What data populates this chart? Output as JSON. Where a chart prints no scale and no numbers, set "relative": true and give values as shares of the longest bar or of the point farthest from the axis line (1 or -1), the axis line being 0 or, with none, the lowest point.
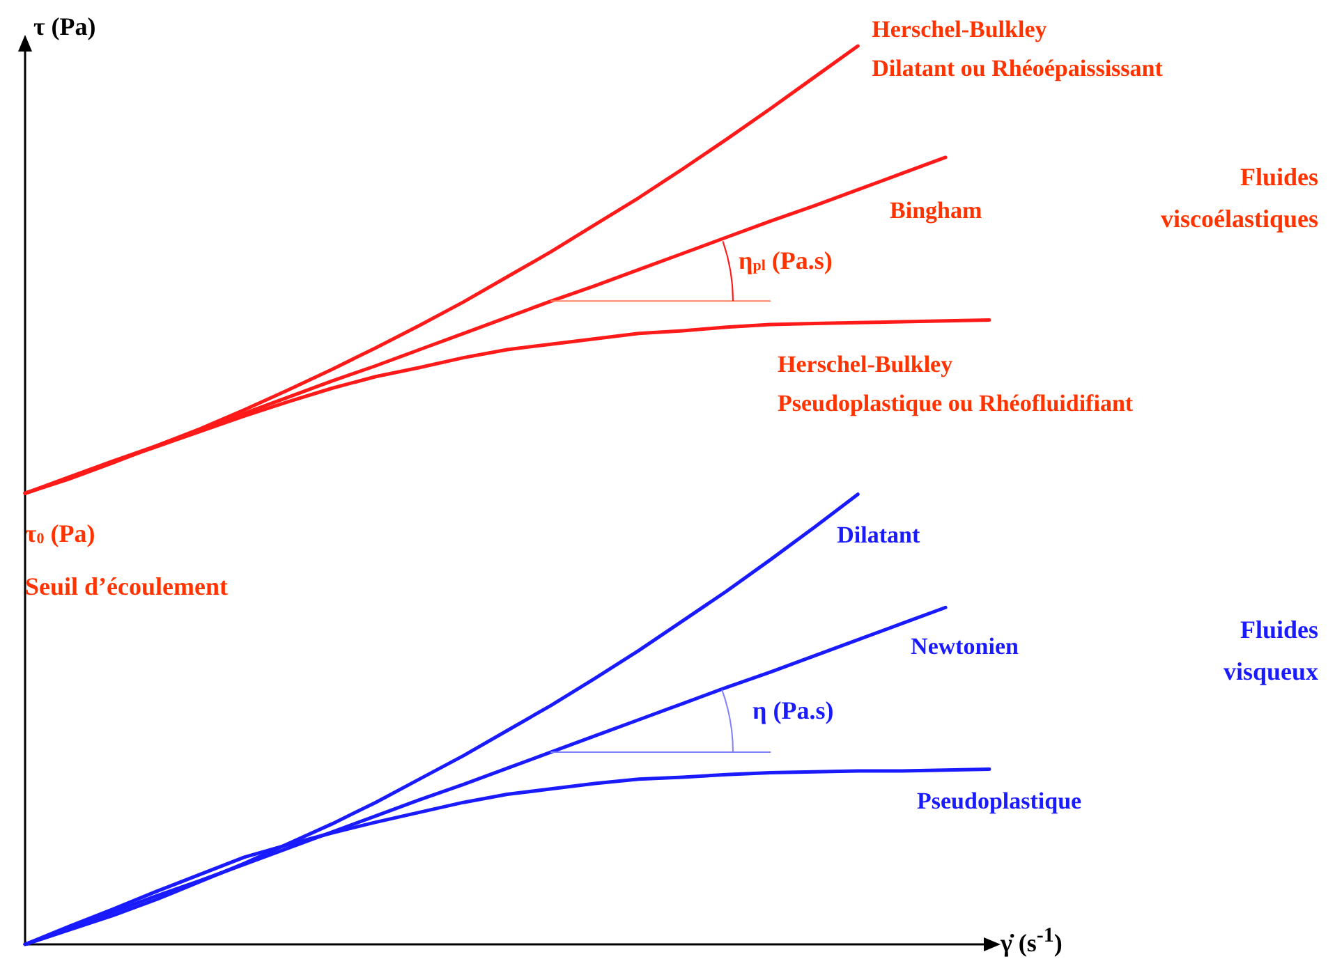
{
  "chart_data": {
    "type": "line",
    "relative": true,
    "xlabel": "γ̇ (s$^{-1}$)",
    "ylabel": "τ (Pa)",
    "categories": [
      null,
      null,
      null,
      null,
      null,
      null,
      null,
      null,
      null,
      null,
      null,
      null,
      null,
      null,
      null,
      null,
      null,
      null,
      null,
      null,
      null,
      null,
      null
    ],
    "series": [
      {
        "name": "Herschel-Bulkley\nDilatant ou Rhéoépaississant",
        "color": "#ff1a1a",
        "values": [
          0.502,
          0.518,
          0.536,
          0.555,
          0.574,
          0.595,
          0.617,
          0.64,
          0.664,
          0.689,
          0.715,
          0.743,
          0.771,
          0.801,
          0.831,
          0.863,
          0.896,
          0.93,
          0.965,
          1,
          null,
          null,
          null
        ]
      },
      {
        "name": "Bingham",
        "color": "#ff1a1a",
        "values": [
          0.502,
          0.52,
          0.538,
          0.555,
          0.573,
          0.591,
          0.609,
          0.627,
          0.644,
          0.662,
          0.68,
          0.698,
          0.716,
          0.733,
          0.751,
          0.769,
          0.787,
          0.805,
          0.822,
          0.84,
          0.858,
          0.876,
          null
        ]
      },
      {
        "name": "Herschel-Bulkley\nPseudoplastique ou Rhéofluidifiant",
        "color": "#ff1a1a",
        "values": [
          0.502,
          0.519,
          0.537,
          0.554,
          0.571,
          0.588,
          0.604,
          0.619,
          0.632,
          0.642,
          0.653,
          0.662,
          0.668,
          0.674,
          0.68,
          0.683,
          0.687,
          0.69,
          0.691,
          0.692,
          0.693,
          0.694,
          0.695
        ]
      },
      {
        "color": "#ff8060",
        "values": [
          null,
          null,
          null,
          null,
          null,
          null,
          null,
          null,
          null,
          null,
          null,
          null,
          0.716,
          0.716,
          0.716,
          0.716,
          0.716,
          0.716,
          null,
          null,
          null,
          null,
          null
        ]
      },
      {
        "name": "Dilatant",
        "color": "#1a1aff",
        "values": [
          0,
          0.016,
          0.032,
          0.05,
          0.07,
          0.09,
          0.112,
          0.134,
          0.158,
          0.184,
          0.21,
          0.238,
          0.266,
          0.296,
          0.327,
          0.36,
          0.393,
          0.428,
          0.464,
          0.501,
          null,
          null,
          null
        ]
      },
      {
        "name": "Newtonien",
        "color": "#1a1aff",
        "values": [
          0,
          0.018,
          0.036,
          0.054,
          0.071,
          0.089,
          0.107,
          0.125,
          0.143,
          0.161,
          0.178,
          0.196,
          0.214,
          0.232,
          0.25,
          0.268,
          0.286,
          0.303,
          0.321,
          0.339,
          0.357,
          0.375,
          null
        ]
      },
      {
        "name": "Pseudoplastique",
        "color": "#1a1aff",
        "values": [
          0,
          0.02,
          0.039,
          0.059,
          0.078,
          0.097,
          0.111,
          0.124,
          0.136,
          0.147,
          0.158,
          0.167,
          0.173,
          0.179,
          0.184,
          0.186,
          0.189,
          0.191,
          0.192,
          0.193,
          0.193,
          0.194,
          0.195
        ]
      },
      {
        "color": "#8080ff",
        "values": [
          null,
          null,
          null,
          null,
          null,
          null,
          null,
          null,
          null,
          null,
          null,
          null,
          0.214,
          0.214,
          0.214,
          0.214,
          0.214,
          0.214,
          null,
          null,
          null,
          null,
          null
        ]
      }
    ],
    "annotations": [
      "Fluides\nviscoélastiques",
      "Fluides\nvisqueux",
      "τ$_{0}$ (Pa)",
      "Seuil d’écoulement",
      "η$_{pl}$ (Pa.s)",
      "η (Pa.s)"
    ]
  }
}
